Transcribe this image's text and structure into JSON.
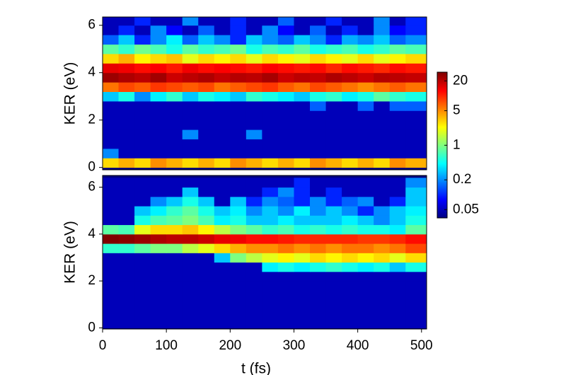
{
  "chart_data": [
    {
      "type": "heatmap",
      "ylabel": "KER (eV)",
      "xlim": [
        0,
        508
      ],
      "ylim": [
        -0.1,
        6.35
      ],
      "yticks": [
        0,
        2,
        4,
        6
      ],
      "x": [
        0,
        25,
        50,
        75,
        100,
        125,
        150,
        175,
        200,
        225,
        250,
        275,
        300,
        325,
        350,
        375,
        400,
        425,
        450,
        475
      ],
      "y": [
        0,
        0.4,
        0.8,
        1.2,
        1.6,
        2.0,
        2.4,
        2.8,
        3.2,
        3.6,
        4.0,
        4.4,
        4.8,
        5.2,
        5.6,
        6.0
      ],
      "ytop": 6.4,
      "z": [
        [
          3,
          4,
          3,
          5,
          4,
          3,
          4,
          3,
          5,
          4,
          3,
          4,
          3,
          5,
          4,
          3,
          4,
          3,
          5,
          4
        ],
        [
          0.2,
          0.05,
          0.05,
          0.05,
          0.05,
          0.05,
          0.05,
          0.05,
          0.05,
          0.05,
          0.05,
          0.05,
          0.05,
          0.05,
          0.05,
          0.05,
          0.05,
          0.05,
          0.05,
          0.05
        ],
        [
          0.05,
          0.05,
          0.05,
          0.05,
          0.05,
          0.05,
          0.05,
          0.05,
          0.05,
          0.05,
          0.05,
          0.05,
          0.05,
          0.05,
          0.05,
          0.05,
          0.05,
          0.05,
          0.05,
          0.05
        ],
        [
          0.05,
          0.05,
          0.05,
          0.05,
          0.05,
          0.2,
          0.05,
          0.05,
          0.05,
          0.2,
          0.05,
          0.05,
          0.05,
          0.05,
          0.05,
          0.05,
          0.05,
          0.05,
          0.05,
          0.05
        ],
        [
          0.05,
          0.05,
          0.05,
          0.05,
          0.05,
          0.05,
          0.05,
          0.05,
          0.05,
          0.05,
          0.05,
          0.05,
          0.05,
          0.05,
          0.05,
          0.05,
          0.05,
          0.05,
          0.05,
          0.05
        ],
        [
          0.05,
          0.05,
          0.05,
          0.05,
          0.05,
          0.05,
          0.05,
          0.05,
          0.05,
          0.05,
          0.05,
          0.05,
          0.05,
          0.05,
          0.05,
          0.05,
          0.05,
          0.05,
          0.05,
          0.05
        ],
        [
          0.05,
          0.05,
          0.05,
          0.05,
          0.05,
          0.05,
          0.05,
          0.05,
          0.05,
          0.05,
          0.05,
          0.05,
          0.05,
          0.15,
          0.05,
          0.05,
          0.15,
          0.05,
          0.15,
          0.15
        ],
        [
          0.3,
          0.5,
          0.2,
          0.4,
          0.6,
          0.3,
          0.5,
          0.4,
          0.3,
          0.6,
          0.5,
          0.4,
          0.3,
          0.5,
          0.6,
          0.4,
          0.5,
          0.8,
          0.6,
          0.5
        ],
        [
          6,
          8,
          7,
          9,
          8,
          7,
          8,
          6,
          7,
          8,
          9,
          7,
          6,
          8,
          7,
          6,
          5,
          6,
          7,
          6
        ],
        [
          25,
          22,
          20,
          24,
          18,
          20,
          22,
          19,
          21,
          20,
          23,
          18,
          20,
          19,
          22,
          20,
          18,
          21,
          20,
          19
        ],
        [
          15,
          14,
          12,
          13,
          11,
          14,
          12,
          13,
          12,
          11,
          13,
          12,
          11,
          12,
          10,
          12,
          11,
          10,
          12,
          11
        ],
        [
          3,
          4,
          2.5,
          3,
          3.5,
          2,
          3,
          2.5,
          3,
          2,
          3,
          2.5,
          2,
          3,
          2.5,
          2,
          3,
          2,
          2.5,
          3
        ],
        [
          0.8,
          0.6,
          0.9,
          0.7,
          0.5,
          0.8,
          0.6,
          0.7,
          0.9,
          0.5,
          0.7,
          0.6,
          0.8,
          0.5,
          0.6,
          0.7,
          0.5,
          0.6,
          0.8,
          0.7
        ],
        [
          0.15,
          0.3,
          0.1,
          0.2,
          0.4,
          0.15,
          0.3,
          0.2,
          0.1,
          0.3,
          0.2,
          0.15,
          0.3,
          0.2,
          0.1,
          0.25,
          0.2,
          0.3,
          0.15,
          0.2
        ],
        [
          0.05,
          0.1,
          0.05,
          0.2,
          0.08,
          0.05,
          0.15,
          0.05,
          0.1,
          0.05,
          0.2,
          0.08,
          0.05,
          0.15,
          0.05,
          0.1,
          0.05,
          0.2,
          0.08,
          0.1
        ],
        [
          0.05,
          0.05,
          0.1,
          0.05,
          0.05,
          0.2,
          0.05,
          0.05,
          0.1,
          0.05,
          0.05,
          0.15,
          0.05,
          0.05,
          0.1,
          0.05,
          0.05,
          0.2,
          0.05,
          0.1
        ]
      ]
    },
    {
      "type": "heatmap",
      "ylabel": "KER (eV)",
      "xlabel": "t (fs)",
      "xlim": [
        0,
        508
      ],
      "ylim": [
        -0.05,
        6.5
      ],
      "xticks": [
        0,
        100,
        200,
        300,
        400,
        500
      ],
      "yticks": [
        0,
        2,
        4,
        6
      ],
      "x": [
        0,
        25,
        50,
        75,
        100,
        125,
        150,
        175,
        200,
        225,
        250,
        275,
        300,
        325,
        350,
        375,
        400,
        425,
        450,
        475
      ],
      "y": [
        0,
        0.4,
        0.8,
        1.2,
        1.6,
        2.0,
        2.4,
        2.8,
        3.2,
        3.6,
        4.0,
        4.4,
        4.8,
        5.2,
        5.6,
        6.0
      ],
      "ytop": 6.4,
      "z": [
        [
          0.05,
          0.05,
          0.05,
          0.05,
          0.05,
          0.05,
          0.05,
          0.05,
          0.05,
          0.05,
          0.05,
          0.05,
          0.05,
          0.05,
          0.05,
          0.05,
          0.05,
          0.05,
          0.05,
          0.05
        ],
        [
          0.05,
          0.05,
          0.05,
          0.05,
          0.05,
          0.05,
          0.05,
          0.05,
          0.05,
          0.05,
          0.05,
          0.05,
          0.05,
          0.05,
          0.05,
          0.05,
          0.05,
          0.05,
          0.05,
          0.05
        ],
        [
          0.05,
          0.05,
          0.05,
          0.05,
          0.05,
          0.05,
          0.05,
          0.05,
          0.05,
          0.05,
          0.05,
          0.05,
          0.05,
          0.05,
          0.05,
          0.05,
          0.05,
          0.05,
          0.05,
          0.05
        ],
        [
          0.05,
          0.05,
          0.05,
          0.05,
          0.05,
          0.05,
          0.05,
          0.05,
          0.05,
          0.05,
          0.05,
          0.05,
          0.05,
          0.05,
          0.05,
          0.05,
          0.05,
          0.05,
          0.05,
          0.05
        ],
        [
          0.05,
          0.05,
          0.05,
          0.05,
          0.05,
          0.05,
          0.05,
          0.05,
          0.05,
          0.05,
          0.05,
          0.05,
          0.05,
          0.05,
          0.05,
          0.05,
          0.05,
          0.05,
          0.05,
          0.05
        ],
        [
          0.05,
          0.05,
          0.05,
          0.05,
          0.05,
          0.05,
          0.05,
          0.05,
          0.05,
          0.05,
          0.05,
          0.05,
          0.05,
          0.05,
          0.05,
          0.05,
          0.05,
          0.05,
          0.05,
          0.05
        ],
        [
          0.05,
          0.05,
          0.05,
          0.05,
          0.05,
          0.05,
          0.05,
          0.05,
          0.05,
          0.05,
          0.4,
          0.5,
          0.4,
          0.5,
          0.6,
          0.5,
          0.4,
          0.5,
          0.3,
          0.5
        ],
        [
          0.05,
          0.05,
          0.05,
          0.05,
          0.05,
          0.05,
          0.05,
          0.3,
          1,
          1.5,
          2,
          2.5,
          2,
          3,
          2.5,
          3,
          2.5,
          3,
          2,
          3
        ],
        [
          0.6,
          0.6,
          0.8,
          1,
          1,
          1.5,
          2,
          3,
          4,
          5,
          5,
          6,
          5,
          6,
          5,
          6,
          6,
          5,
          6,
          8
        ],
        [
          30,
          28,
          25,
          22,
          20,
          20,
          18,
          15,
          14,
          12,
          12,
          11,
          10,
          10,
          10,
          10,
          9,
          9,
          10,
          12
        ],
        [
          0.8,
          0.7,
          2,
          3,
          3,
          3.5,
          2.5,
          1.5,
          1,
          0.8,
          0.6,
          0.7,
          0.5,
          0.6,
          0.5,
          0.6,
          0.5,
          0.5,
          0.4,
          0.8
        ],
        [
          0.05,
          0.05,
          0.5,
          0.7,
          0.8,
          1,
          0.7,
          0.4,
          0.5,
          0.3,
          0.3,
          0.4,
          0.3,
          0.3,
          0.3,
          0.4,
          0.3,
          0.2,
          0.3,
          0.5
        ],
        [
          0.05,
          0.05,
          0.3,
          0.4,
          0.6,
          0.8,
          0.5,
          0.3,
          0.4,
          0.2,
          0.3,
          0.2,
          0.4,
          0.2,
          0.3,
          0.2,
          0.1,
          0.2,
          0.3,
          0.4
        ],
        [
          0.05,
          0.05,
          0.05,
          0.2,
          0.3,
          0.5,
          0.3,
          0.05,
          0.3,
          0.1,
          0.2,
          0.15,
          0.1,
          0.2,
          0.1,
          0.15,
          0.2,
          0.05,
          0.1,
          0.3
        ],
        [
          0.05,
          0.05,
          0.05,
          0.05,
          0.05,
          0.3,
          0.05,
          0.05,
          0.05,
          0.05,
          0.1,
          0.2,
          0.1,
          0.05,
          0.1,
          0.05,
          0.05,
          0.05,
          0.05,
          0.3
        ],
        [
          0.05,
          0.05,
          0.05,
          0.05,
          0.05,
          0.05,
          0.05,
          0.05,
          0.05,
          0.05,
          0.05,
          0.05,
          0.1,
          0.05,
          0.05,
          0.05,
          0.05,
          0.05,
          0.05,
          0.2
        ]
      ]
    }
  ],
  "colorbar": {
    "scale": "log",
    "clim": [
      0.034,
      30
    ],
    "ticks": [
      0.05,
      0.2,
      1,
      5,
      20
    ]
  }
}
